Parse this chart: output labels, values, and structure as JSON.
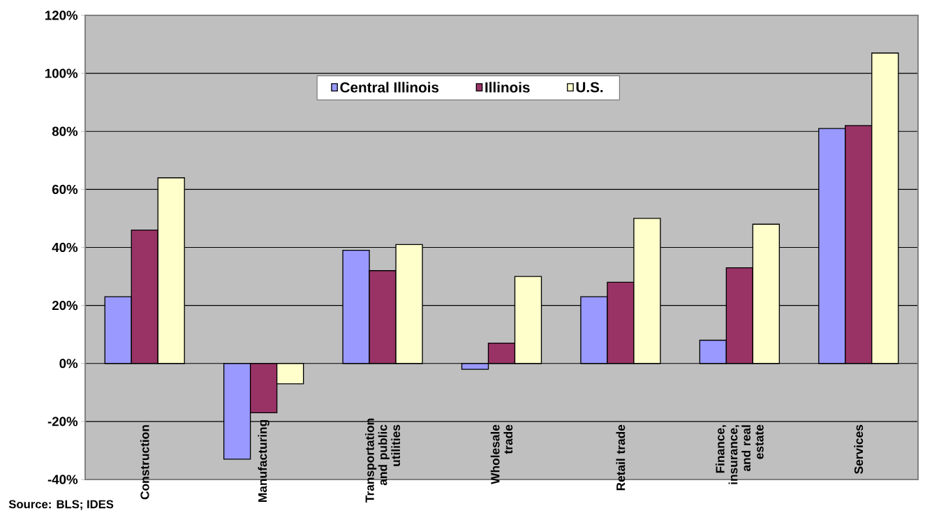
{
  "chart_data": {
    "type": "bar",
    "categories": [
      "Construction",
      "Manufacturing",
      "Transportation and public utilities",
      "Wholesale trade",
      "Retail trade",
      "Finance, insurance, and real estate",
      "Services"
    ],
    "series": [
      {
        "name": "Central Illinois",
        "color": "#9999ff",
        "values": [
          23,
          -33,
          39,
          -2,
          23,
          8,
          81
        ]
      },
      {
        "name": "Illinois",
        "color": "#993366",
        "values": [
          46,
          -17,
          32,
          7,
          28,
          33,
          82
        ]
      },
      {
        "name": "U.S.",
        "color": "#ffffcc",
        "values": [
          64,
          -7,
          41,
          30,
          50,
          48,
          107
        ]
      }
    ],
    "ylim": [
      -40,
      120
    ],
    "yticks": [
      {
        "value": -40,
        "label": "-40%"
      },
      {
        "value": -20,
        "label": "-20%"
      },
      {
        "value": 0,
        "label": "0%"
      },
      {
        "value": 20,
        "label": "20%"
      },
      {
        "value": 40,
        "label": "40%"
      },
      {
        "value": 60,
        "label": "60%"
      },
      {
        "value": 80,
        "label": "80%"
      },
      {
        "value": 100,
        "label": "100%"
      },
      {
        "value": 120,
        "label": "120%"
      }
    ],
    "grid": "y",
    "legend": "top",
    "annotations": [
      "Source: BLS; IDES"
    ]
  }
}
